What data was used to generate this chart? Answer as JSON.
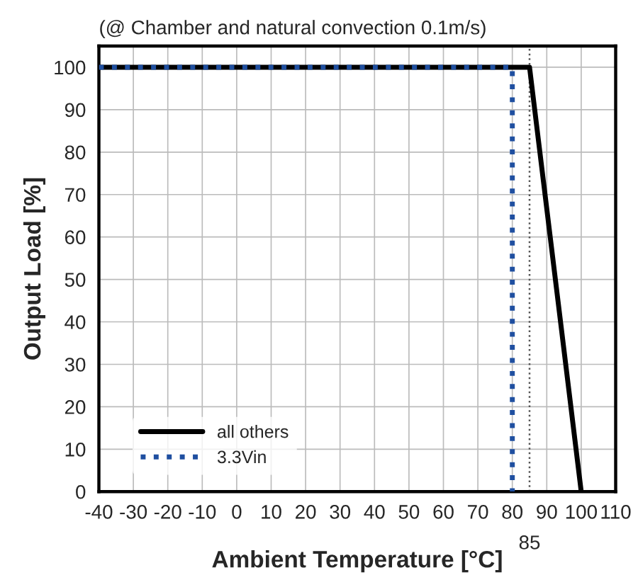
{
  "chart_data": {
    "type": "line",
    "title": "(@ Chamber and natural convection 0.1m/s)",
    "xlabel": "Ambient Temperature [°C]",
    "ylabel": "Output Load [%]",
    "series": [
      {
        "name": "all others",
        "color": "#000000",
        "x": [
          -40,
          85,
          100
        ],
        "values": [
          100,
          100,
          0
        ],
        "line_style": "solid"
      },
      {
        "name": "3.3Vin",
        "color": "#1f4fa0",
        "x": [
          -40,
          80,
          80
        ],
        "values": [
          100,
          100,
          0
        ],
        "line_style": "dotted"
      }
    ],
    "xlim": [
      -40,
      110
    ],
    "xticks": [
      -40,
      -30,
      -20,
      -10,
      0,
      10,
      20,
      30,
      40,
      50,
      60,
      70,
      80,
      90,
      100,
      110
    ],
    "ylim": [
      0,
      105
    ],
    "yticks": [
      0,
      10,
      20,
      30,
      40,
      50,
      60,
      70,
      80,
      90,
      100
    ],
    "ref_lines": [
      {
        "axis": "x",
        "value": 85,
        "label": "85",
        "color": "#555555",
        "line_style": "dotted"
      }
    ],
    "grid": true,
    "legend": "bottom left",
    "marker": "none"
  }
}
